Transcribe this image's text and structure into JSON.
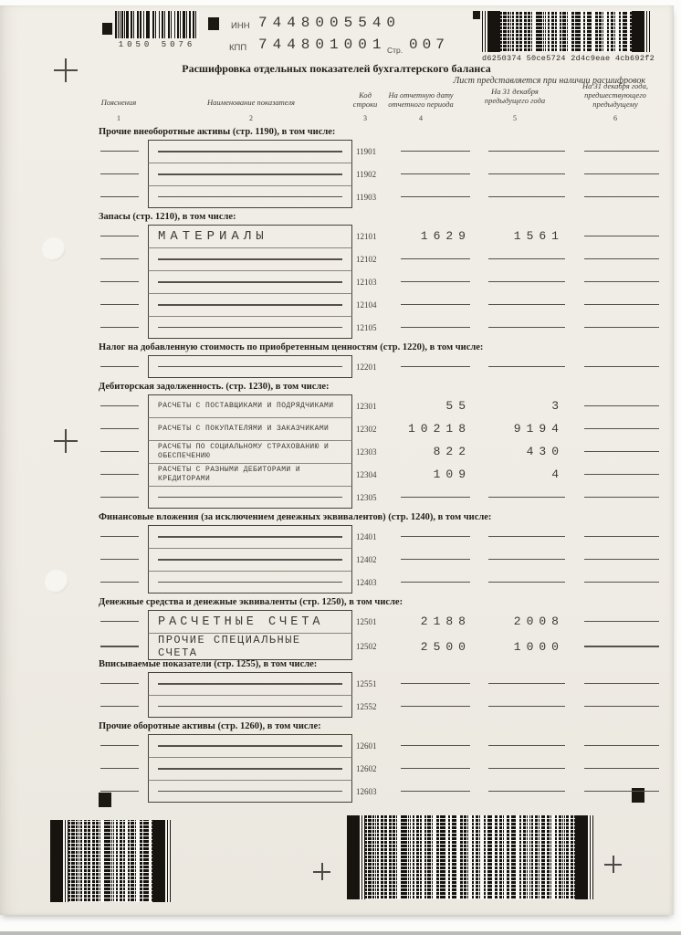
{
  "header": {
    "barcode_digits": "1050 5076",
    "inn_label": "ИНН",
    "inn": "7448005540",
    "kpp_label": "КПП",
    "kpp": "744801001",
    "page_label": "Стр.",
    "page": "007",
    "barcode2d_caption": "d6250374 50ce5724 2d4c9eae 4cb692f2",
    "title": "Расшифровка отдельных показателей бухгалтерского баланса",
    "subtitle": "Лист представляется при наличии расшифровок"
  },
  "columns": {
    "c1": "Пояснения",
    "c2": "Наименование показателя",
    "c3": "Код\nстроки",
    "c4": "На отчетную дату\nотчетного периода",
    "c5": "На 31 декабря\nпредыдущего года",
    "c6": "На 31 декабря года,\nпредшествующего\nпредыдущему",
    "n1": "1",
    "n2": "2",
    "n3": "3",
    "n4": "4",
    "n5": "5",
    "n6": "6"
  },
  "sections": [
    {
      "title": "Прочие внеоборотные активы (стр. 1190), в том числе:",
      "rows": [
        {
          "code": "11901",
          "name": "",
          "v4": "",
          "v5": "",
          "v6": ""
        },
        {
          "code": "11902",
          "name": "",
          "v4": "",
          "v5": "",
          "v6": ""
        },
        {
          "code": "11903",
          "name": "",
          "v4": "",
          "v5": "",
          "v6": ""
        }
      ]
    },
    {
      "title": "Запасы (стр. 1210), в том числе:",
      "rows": [
        {
          "code": "12101",
          "name": "МАТЕРИАЛЫ",
          "style": "xl",
          "v4": "1629",
          "v5": "1561",
          "v6": ""
        },
        {
          "code": "12102",
          "name": "",
          "v4": "",
          "v5": "",
          "v6": ""
        },
        {
          "code": "12103",
          "name": "",
          "v4": "",
          "v5": "",
          "v6": ""
        },
        {
          "code": "12104",
          "name": "",
          "v4": "",
          "v5": "",
          "v6": ""
        },
        {
          "code": "12105",
          "name": "",
          "v4": "",
          "v5": "",
          "v6": ""
        }
      ]
    },
    {
      "title": "Налог на добавленную стоимость по приобретенным ценностям (стр. 1220), в том числе:",
      "rows": [
        {
          "code": "12201",
          "name": "",
          "v4": "",
          "v5": "",
          "v6": ""
        }
      ]
    },
    {
      "title": "Дебиторская задолженность. (стр. 1230), в том числе:",
      "rows": [
        {
          "code": "12301",
          "name": "РАСЧЕТЫ С ПОСТАВЩИКАМИ И ПОДРЯДЧИКАМИ",
          "style": "sm",
          "v4": "55",
          "v5": "3",
          "v6": ""
        },
        {
          "code": "12302",
          "name": "РАСЧЕТЫ С ПОКУПАТЕЛЯМИ И ЗАКАЗЧИКАМИ",
          "style": "sm",
          "v4": "10218",
          "v5": "9194",
          "v6": ""
        },
        {
          "code": "12303",
          "name": "РАСЧЕТЫ ПО СОЦИАЛЬНОМУ СТРАХОВАНИЮ И ОБЕСПЕЧЕНИЮ",
          "style": "sm",
          "v4": "822",
          "v5": "430",
          "v6": ""
        },
        {
          "code": "12304",
          "name": "РАСЧЕТЫ С РАЗНЫМИ ДЕБИТОРАМИ И КРЕДИТОРАМИ",
          "style": "sm",
          "v4": "109",
          "v5": "4",
          "v6": ""
        },
        {
          "code": "12305",
          "name": "",
          "v4": "",
          "v5": "",
          "v6": ""
        }
      ]
    },
    {
      "title": "Финансовые вложения (за исключением денежных эквивалентов) (стр. 1240), в том числе:",
      "rows": [
        {
          "code": "12401",
          "name": "",
          "v4": "",
          "v5": "",
          "v6": ""
        },
        {
          "code": "12402",
          "name": "",
          "v4": "",
          "v5": "",
          "v6": ""
        },
        {
          "code": "12403",
          "name": "",
          "v4": "",
          "v5": "",
          "v6": ""
        }
      ]
    },
    {
      "title": "Денежные средства и денежные эквиваленты (стр. 1250), в том числе:",
      "rows": [
        {
          "code": "12501",
          "name": "РАСЧЕТНЫЕ СЧЕТА",
          "style": "lg",
          "v4": "2188",
          "v5": "2008",
          "v6": ""
        },
        {
          "code": "12502",
          "name": "ПРОЧИЕ СПЕЦИАЛЬНЫЕ СЧЕТА",
          "style": "md",
          "v4": "2500",
          "v5": "1000",
          "v6": ""
        }
      ]
    },
    {
      "title": "Вписываемые показатели (стр. 1255), в том числе:",
      "rows": [
        {
          "code": "12551",
          "name": "",
          "v4": "",
          "v5": "",
          "v6": ""
        },
        {
          "code": "12552",
          "name": "",
          "v4": "",
          "v5": "",
          "v6": ""
        }
      ]
    },
    {
      "title": "Прочие оборотные активы (стр. 1260), в том числе:",
      "rows": [
        {
          "code": "12601",
          "name": "",
          "v4": "",
          "v5": "",
          "v6": ""
        },
        {
          "code": "12602",
          "name": "",
          "v4": "",
          "v5": "",
          "v6": ""
        },
        {
          "code": "12603",
          "name": "",
          "v4": "",
          "v5": "",
          "v6": ""
        }
      ]
    }
  ]
}
